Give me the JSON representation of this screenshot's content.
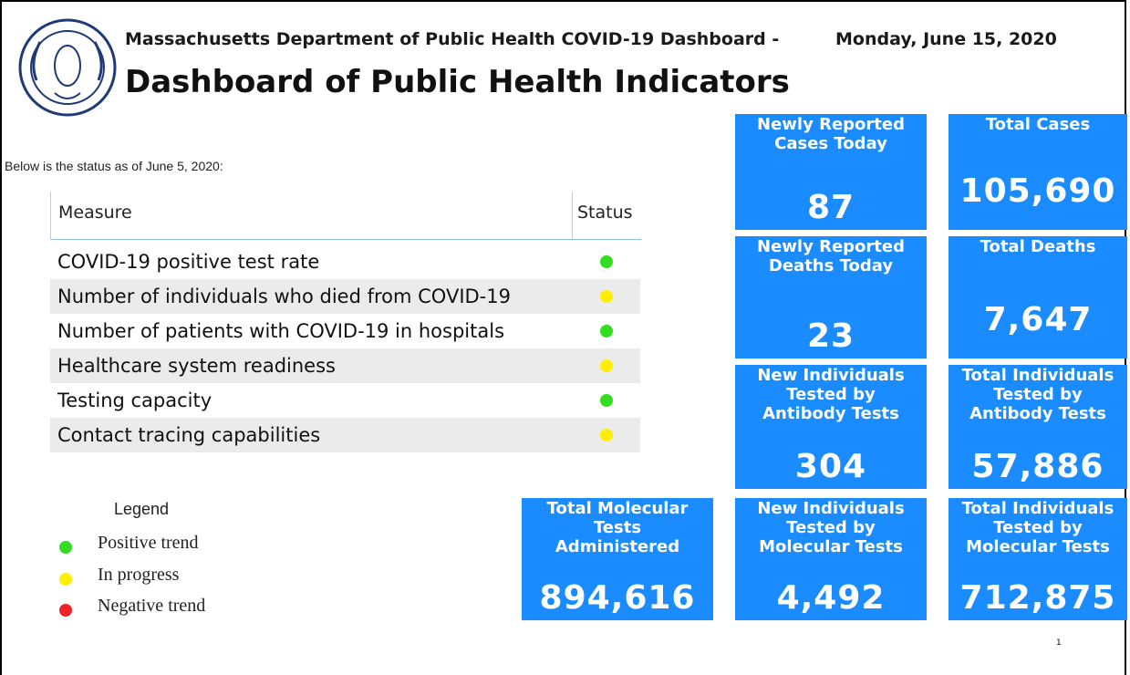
{
  "header": {
    "agency": "Massachusetts Department of Public Health COVID-19 Dashboard -",
    "date": "Monday, June 15, 2020",
    "title": "Dashboard of Public Health Indicators"
  },
  "status_note": "Below is the status as of June 5, 2020:",
  "table": {
    "columns": [
      "Measure",
      "Status"
    ],
    "rows": [
      {
        "measure": "COVID-19 positive test rate",
        "color": "#33dd22"
      },
      {
        "measure": "Number of individuals who died from COVID-19",
        "color": "#ffee00"
      },
      {
        "measure": "Number of patients with COVID-19 in hospitals",
        "color": "#33dd22"
      },
      {
        "measure": "Healthcare system readiness",
        "color": "#ffee00"
      },
      {
        "measure": "Testing capacity",
        "color": "#33dd22"
      },
      {
        "measure": "Contact tracing capabilities",
        "color": "#ffee00"
      }
    ]
  },
  "legend": {
    "title": "Legend",
    "items": [
      {
        "label": "Positive trend",
        "color": "#33dd22"
      },
      {
        "label": "In progress",
        "color": "#ffee00"
      },
      {
        "label": "Negative trend",
        "color": "#ee2222"
      }
    ]
  },
  "tiles": [
    {
      "label": [
        "Newly Reported",
        "Cases Today"
      ],
      "value": "87"
    },
    {
      "label": [
        "Total Cases"
      ],
      "value": "105,690"
    },
    {
      "label": [
        "Newly Reported",
        "Deaths Today"
      ],
      "value": "23"
    },
    {
      "label": [
        "Total Deaths"
      ],
      "value": "7,647"
    },
    {
      "label": [
        "New Individuals",
        "Tested by",
        "Antibody Tests"
      ],
      "value": "304"
    },
    {
      "label": [
        "Total Individuals",
        "Tested by",
        "Antibody Tests"
      ],
      "value": "57,886"
    },
    {
      "label": [
        "Total Molecular",
        "Tests",
        "Administered"
      ],
      "value": "894,616"
    },
    {
      "label": [
        "New Individuals",
        "Tested by",
        "Molecular Tests"
      ],
      "value": "4,492"
    },
    {
      "label": [
        "Total Individuals",
        "Tested by",
        "Molecular Tests"
      ],
      "value": "712,875"
    }
  ],
  "page_number": "1"
}
